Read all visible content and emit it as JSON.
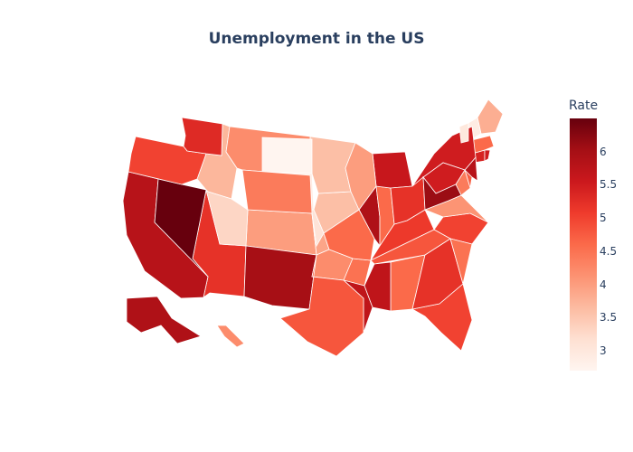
{
  "title": "Unemployment in the US",
  "colorbar": {
    "title": "Rate",
    "min": 2.7,
    "max": 6.5,
    "ticks": [
      "3",
      "3.5",
      "4",
      "4.5",
      "5",
      "5.5",
      "6"
    ],
    "colorscale": [
      "#fff5f0",
      "#fee0d2",
      "#fcbba1",
      "#fc9272",
      "#fb6a4a",
      "#ef3b2c",
      "#cb181d",
      "#a50f15",
      "#67000d"
    ]
  },
  "chart_data": {
    "type": "choropleth",
    "scope": "usa",
    "title": "Unemployment in the US",
    "states": [
      {
        "code": "AL",
        "value": 4.6
      },
      {
        "code": "AK",
        "value": 5.9
      },
      {
        "code": "AZ",
        "value": 5.2
      },
      {
        "code": "AR",
        "value": 4.5
      },
      {
        "code": "CA",
        "value": 5.8
      },
      {
        "code": "CO",
        "value": 4.0
      },
      {
        "code": "CT",
        "value": 5.4
      },
      {
        "code": "DE",
        "value": 4.7
      },
      {
        "code": "FL",
        "value": 5.0
      },
      {
        "code": "GA",
        "value": 5.2
      },
      {
        "code": "HI",
        "value": 4.2
      },
      {
        "code": "ID",
        "value": 3.7
      },
      {
        "code": "IL",
        "value": 5.9
      },
      {
        "code": "IN",
        "value": 4.6
      },
      {
        "code": "IA",
        "value": 3.6
      },
      {
        "code": "KS",
        "value": 3.9
      },
      {
        "code": "KY",
        "value": 5.1
      },
      {
        "code": "LA",
        "value": 5.7
      },
      {
        "code": "ME",
        "value": 3.8
      },
      {
        "code": "MD",
        "value": 4.4
      },
      {
        "code": "MA",
        "value": 4.6
      },
      {
        "code": "MI",
        "value": 5.6
      },
      {
        "code": "MN",
        "value": 3.6
      },
      {
        "code": "MS",
        "value": 5.7
      },
      {
        "code": "MO",
        "value": 4.6
      },
      {
        "code": "MT",
        "value": 4.2
      },
      {
        "code": "NE",
        "value": 3.1
      },
      {
        "code": "NV",
        "value": 6.5
      },
      {
        "code": "NH",
        "value": 2.9
      },
      {
        "code": "NJ",
        "value": 5.8
      },
      {
        "code": "NM",
        "value": 6.0
      },
      {
        "code": "NY",
        "value": 5.5
      },
      {
        "code": "NC",
        "value": 5.0
      },
      {
        "code": "ND",
        "value": 2.7
      },
      {
        "code": "OH",
        "value": 5.2
      },
      {
        "code": "OK",
        "value": 4.2
      },
      {
        "code": "OR",
        "value": 5.0
      },
      {
        "code": "PA",
        "value": 5.5
      },
      {
        "code": "RI",
        "value": 5.5
      },
      {
        "code": "SC",
        "value": 4.5
      },
      {
        "code": "SD",
        "value": 2.9
      },
      {
        "code": "TN",
        "value": 4.8
      },
      {
        "code": "TX",
        "value": 4.8
      },
      {
        "code": "UT",
        "value": 3.3
      },
      {
        "code": "VT",
        "value": 3.0
      },
      {
        "code": "VA",
        "value": 4.1
      },
      {
        "code": "WA",
        "value": 5.3
      },
      {
        "code": "WV",
        "value": 6.1
      },
      {
        "code": "WI",
        "value": 4.0
      },
      {
        "code": "WY",
        "value": 4.4
      }
    ]
  }
}
